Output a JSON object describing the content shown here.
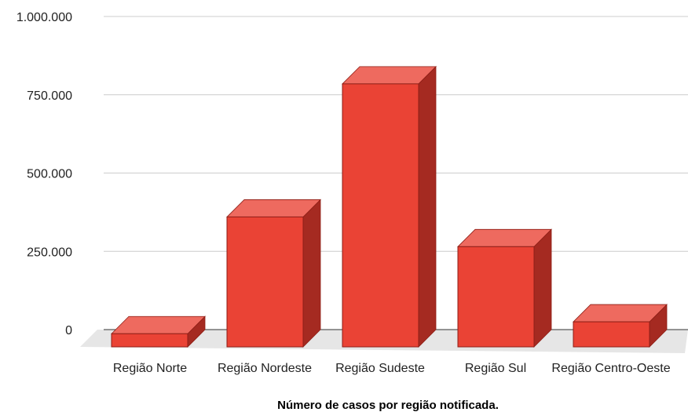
{
  "chart_data": {
    "type": "bar",
    "style": "3d",
    "title": "Número de casos por região notificada.",
    "xlabel": "",
    "ylabel": "",
    "categories": [
      "Região Norte",
      "Região Nordeste",
      "Região Sudeste",
      "Região Sul",
      "Região Centro-Oeste"
    ],
    "values": [
      42000,
      415000,
      840000,
      320000,
      80000
    ],
    "ylim": [
      0,
      1000000
    ],
    "yticks": [
      0,
      250000,
      500000,
      750000,
      1000000
    ],
    "ytick_labels": [
      "0",
      "250.000",
      "500.000",
      "750.000",
      "1.000.000"
    ],
    "grid": true,
    "legend": "none",
    "colors": {
      "bar_front": "#ea4335",
      "bar_top": "#ee6a5f",
      "bar_side": "#a52a21",
      "bar_edge": "#8e1e16",
      "floor": "#e6e6e6",
      "grid": "#cccccc"
    }
  }
}
